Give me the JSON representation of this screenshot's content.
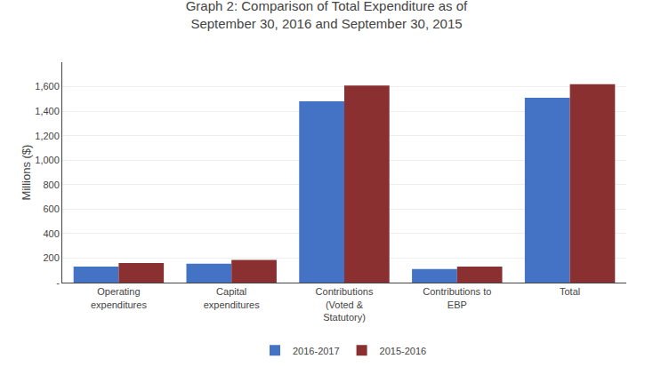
{
  "chart_data": {
    "type": "bar",
    "title": "Graph 2: Comparison of Total Expenditure as of\nSeptember 30, 2016 and September 30, 2015",
    "categories": [
      "Operating\nexpenditures",
      "Capital\nexpenditures",
      "Contributions\n(Voted &\nStatutory)",
      "Contributions to\nEBP",
      "Total"
    ],
    "series": [
      {
        "name": "2016-2017",
        "color": "#4472C4",
        "values": [
          130,
          155,
          1480,
          110,
          1510
        ]
      },
      {
        "name": "2015-2016",
        "color": "#8B3030",
        "values": [
          160,
          185,
          1610,
          130,
          1620
        ]
      }
    ],
    "ylabel": "Millions ($)",
    "ylim": [
      0,
      1800
    ],
    "yticks": [
      {
        "value": 0,
        "label": "-"
      },
      200,
      400,
      600,
      800,
      {
        "value": 1000,
        "label": "1,000"
      },
      {
        "value": 1200,
        "label": "1,200"
      },
      {
        "value": 1400,
        "label": "1,400"
      },
      {
        "value": 1600,
        "label": "1,600"
      }
    ],
    "grid": true,
    "legend": "bottom"
  }
}
